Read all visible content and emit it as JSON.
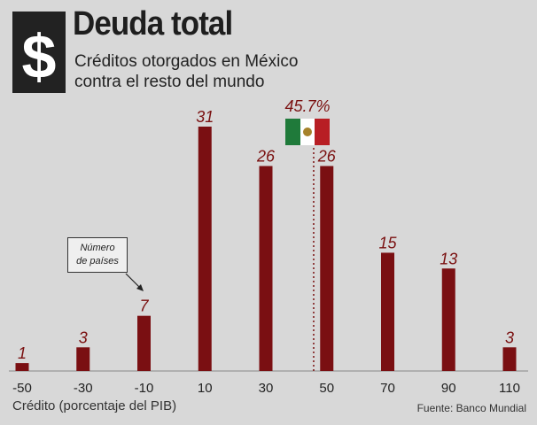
{
  "header": {
    "title": "Deuda total",
    "subtitle_line1": "Créditos otorgados en México",
    "subtitle_line2": "contra el resto del mundo",
    "logo_symbol": "$",
    "logo_icon": "dollar-icon"
  },
  "chart_data": {
    "type": "bar",
    "title": "Deuda total",
    "subtitle": "Créditos otorgados en México contra el resto del mundo",
    "categories": [
      "-50",
      "-30",
      "-10",
      "10",
      "30",
      "50",
      "70",
      "90",
      "110"
    ],
    "values": [
      1,
      3,
      7,
      31,
      26,
      26,
      15,
      13,
      3
    ],
    "xlabel": "Crédito (porcentaje del PIB)",
    "ylabel": "Número de países",
    "ylim": [
      0,
      31
    ],
    "grid": false,
    "bar_color": "#7a0f12",
    "reference_line": {
      "x": 45.7,
      "label": "45.7%",
      "country": "México"
    },
    "annotation": {
      "line1": "Número",
      "line2": "de países"
    },
    "source": "Fuente: Banco Mundial"
  },
  "flag_colors": {
    "green": "#1f7a3a",
    "white": "#ffffff",
    "red": "#b81e24"
  }
}
